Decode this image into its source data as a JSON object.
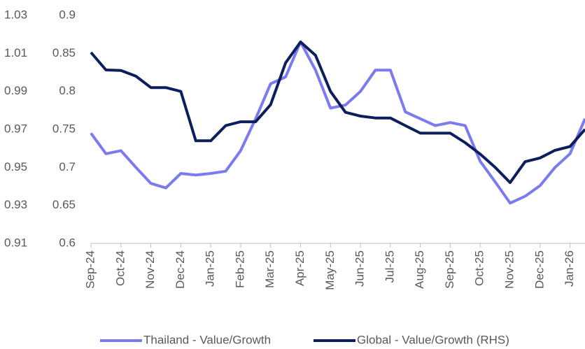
{
  "chart_data": {
    "type": "line",
    "categories": [
      "Sep-24",
      null,
      "Oct-24",
      null,
      "Nov-24",
      null,
      "Dec-24",
      null,
      "Jan-25",
      null,
      "Feb-25",
      null,
      "Mar-25",
      null,
      "Apr-25",
      null,
      "May-25",
      null,
      "Jun-25",
      null,
      "Jul-25",
      null,
      "Aug-25",
      null,
      "Sep-25",
      null,
      "Oct-25",
      null,
      "Nov-25",
      null,
      "Dec-25",
      null,
      "Jan-26",
      null
    ],
    "series": [
      {
        "name": "Thailand - Value/Growth",
        "color": "#7b7bf0",
        "values": [
          0.745,
          0.718,
          0.722,
          0.7,
          0.679,
          0.673,
          0.692,
          0.69,
          0.692,
          0.695,
          0.722,
          0.764,
          0.81,
          0.819,
          0.865,
          0.828,
          0.778,
          0.782,
          0.8,
          0.828,
          0.828,
          0.773,
          0.764,
          0.755,
          0.759,
          0.755,
          0.708,
          0.681,
          0.653,
          0.662,
          0.676,
          0.7,
          0.718,
          0.764
        ]
      },
      {
        "name": "Global - Value/Growth (RHS)",
        "color": "#0c1f5c",
        "axis": "y2",
        "values": [
          1.0105,
          1.0013,
          1.001,
          0.998,
          0.992,
          0.992,
          0.99,
          0.964,
          0.964,
          0.972,
          0.974,
          0.974,
          0.983,
          1.005,
          1.016,
          1.009,
          0.99,
          0.979,
          0.977,
          0.976,
          0.976,
          0.972,
          0.968,
          0.968,
          0.968,
          0.963,
          0.957,
          0.95,
          0.942,
          0.953,
          0.955,
          0.959,
          0.961,
          0.97
        ]
      }
    ],
    "ylim": [
      0.6,
      0.9
    ],
    "yticks": [
      0.6,
      0.65,
      0.7,
      0.75,
      0.8,
      0.85,
      0.9
    ],
    "y2lim": [
      0.91,
      1.03
    ],
    "y2ticks": [
      0.91,
      0.93,
      0.95,
      0.97,
      0.99,
      1.01,
      1.03
    ],
    "legend": "bottom"
  }
}
